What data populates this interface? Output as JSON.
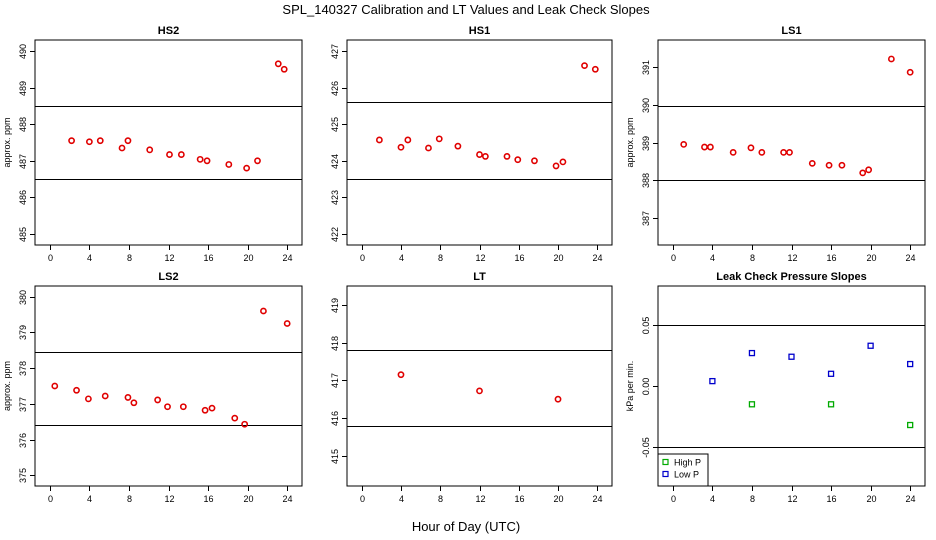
{
  "figure": {
    "title": "SPL_140327  Calibration and LT Values and Leak Check Slopes",
    "xlabel": "Hour of Day (UTC)"
  },
  "chart_data": [
    {
      "type": "scatter",
      "title": "HS2",
      "ylabel": "approx. ppm",
      "xlim": [
        -1.5,
        25.5
      ],
      "ylim": [
        484.7,
        490.3
      ],
      "xticks": [
        "0",
        "4",
        "8",
        "12",
        "16",
        "20",
        "24"
      ],
      "yticks": [
        "485",
        "486",
        "487",
        "488",
        "489",
        "490"
      ],
      "hlines": [
        486.5,
        488.5
      ],
      "series": [
        {
          "color": "#e00000",
          "marker": "circle",
          "points": [
            [
              2.2,
              487.55
            ],
            [
              4.0,
              487.52
            ],
            [
              5.1,
              487.55
            ],
            [
              7.3,
              487.35
            ],
            [
              7.9,
              487.55
            ],
            [
              10.1,
              487.3
            ],
            [
              12.1,
              487.17
            ],
            [
              13.3,
              487.17
            ],
            [
              15.2,
              487.04
            ],
            [
              15.9,
              487.0
            ],
            [
              18.1,
              486.9
            ],
            [
              19.9,
              486.8
            ],
            [
              21.0,
              487.0
            ],
            [
              23.1,
              489.65
            ],
            [
              23.7,
              489.5
            ]
          ]
        }
      ]
    },
    {
      "type": "scatter",
      "title": "HS1",
      "ylabel": "",
      "xlim": [
        -1.5,
        25.5
      ],
      "ylim": [
        421.7,
        427.3
      ],
      "xticks": [
        "0",
        "4",
        "8",
        "12",
        "16",
        "20",
        "24"
      ],
      "yticks": [
        "422",
        "423",
        "424",
        "425",
        "426",
        "427"
      ],
      "hlines": [
        423.5,
        425.6
      ],
      "series": [
        {
          "color": "#e00000",
          "marker": "circle",
          "points": [
            [
              1.8,
              424.57
            ],
            [
              4.0,
              424.37
            ],
            [
              4.7,
              424.57
            ],
            [
              6.8,
              424.35
            ],
            [
              7.9,
              424.6
            ],
            [
              9.8,
              424.4
            ],
            [
              12.0,
              424.17
            ],
            [
              12.6,
              424.12
            ],
            [
              14.8,
              424.12
            ],
            [
              15.9,
              424.03
            ],
            [
              17.6,
              424.0
            ],
            [
              19.8,
              423.86
            ],
            [
              20.5,
              423.97
            ],
            [
              22.7,
              426.6
            ],
            [
              23.8,
              426.5
            ]
          ]
        }
      ]
    },
    {
      "type": "scatter",
      "title": "LS1",
      "ylabel": "approx. ppm",
      "xlim": [
        -1.5,
        25.5
      ],
      "ylim": [
        386.3,
        391.7
      ],
      "xticks": [
        "0",
        "4",
        "8",
        "12",
        "16",
        "20",
        "24"
      ],
      "yticks": [
        "387",
        "388",
        "389",
        "390",
        "391"
      ],
      "hlines": [
        388.0,
        389.95
      ],
      "series": [
        {
          "color": "#e00000",
          "marker": "circle",
          "points": [
            [
              1.1,
              388.95
            ],
            [
              3.2,
              388.88
            ],
            [
              3.8,
              388.88
            ],
            [
              6.1,
              388.74
            ],
            [
              7.9,
              388.86
            ],
            [
              9.0,
              388.74
            ],
            [
              11.2,
              388.74
            ],
            [
              11.8,
              388.74
            ],
            [
              14.1,
              388.45
            ],
            [
              15.8,
              388.4
            ],
            [
              17.1,
              388.4
            ],
            [
              19.2,
              388.2
            ],
            [
              19.8,
              388.28
            ],
            [
              22.1,
              391.2
            ],
            [
              24.0,
              390.85
            ]
          ]
        }
      ]
    },
    {
      "type": "scatter",
      "title": "LS2",
      "ylabel": "approx. ppm",
      "xlim": [
        -1.5,
        25.5
      ],
      "ylim": [
        374.7,
        380.3
      ],
      "xticks": [
        "0",
        "4",
        "8",
        "12",
        "16",
        "20",
        "24"
      ],
      "yticks": [
        "375",
        "376",
        "377",
        "378",
        "379",
        "380"
      ],
      "hlines": [
        376.4,
        378.45
      ],
      "series": [
        {
          "color": "#e00000",
          "marker": "circle",
          "points": [
            [
              0.5,
              377.5
            ],
            [
              2.7,
              377.38
            ],
            [
              3.9,
              377.14
            ],
            [
              5.6,
              377.22
            ],
            [
              7.9,
              377.18
            ],
            [
              8.5,
              377.03
            ],
            [
              10.9,
              377.11
            ],
            [
              11.9,
              376.92
            ],
            [
              13.5,
              376.92
            ],
            [
              15.7,
              376.82
            ],
            [
              16.4,
              376.88
            ],
            [
              18.7,
              376.6
            ],
            [
              19.7,
              376.43
            ],
            [
              21.6,
              379.6
            ],
            [
              24.0,
              379.25
            ]
          ]
        }
      ]
    },
    {
      "type": "scatter",
      "title": "LT",
      "ylabel": "",
      "xlim": [
        -1.5,
        25.5
      ],
      "ylim": [
        414.2,
        419.5
      ],
      "xticks": [
        "0",
        "4",
        "8",
        "12",
        "16",
        "20",
        "24"
      ],
      "yticks": [
        "415",
        "416",
        "417",
        "418",
        "419"
      ],
      "hlines": [
        415.8,
        417.8
      ],
      "series": [
        {
          "color": "#e00000",
          "marker": "circle",
          "points": [
            [
              4.0,
              417.15
            ],
            [
              12.0,
              416.72
            ],
            [
              20.0,
              416.5
            ]
          ]
        }
      ]
    },
    {
      "type": "scatter",
      "title": "Leak Check Pressure Slopes",
      "ylabel": "kPa per min.",
      "xlim": [
        -1.5,
        25.5
      ],
      "ylim": [
        -0.082,
        0.082
      ],
      "xticks": [
        "0",
        "4",
        "8",
        "12",
        "16",
        "20",
        "24"
      ],
      "yticks": [
        "-0.05",
        "0.00",
        "0.05"
      ],
      "hlines": [
        0.05,
        -0.05
      ],
      "legend": "bottom-left",
      "series": [
        {
          "name": "High P",
          "color": "#00aa00",
          "marker": "square",
          "points": [
            [
              8.0,
              -0.015
            ],
            [
              16.0,
              -0.015
            ],
            [
              24.0,
              -0.032
            ]
          ]
        },
        {
          "name": "Low P",
          "color": "#0000cc",
          "marker": "square",
          "points": [
            [
              4.0,
              0.004
            ],
            [
              8.0,
              0.027
            ],
            [
              12.0,
              0.024
            ],
            [
              16.0,
              0.01
            ],
            [
              20.0,
              0.033
            ],
            [
              24.0,
              0.018
            ]
          ]
        }
      ]
    }
  ]
}
